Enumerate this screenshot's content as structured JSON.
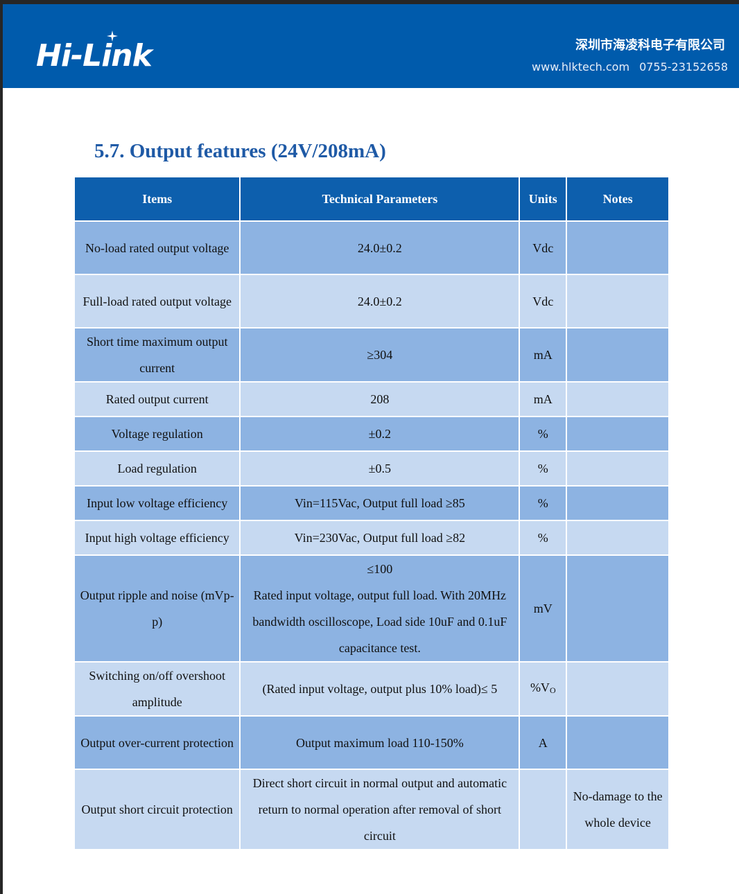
{
  "header": {
    "logo": "Hi-Link",
    "company": "深圳市海凌科电子有限公司",
    "website": "www.hlktech.com",
    "phone": "0755-23152658"
  },
  "title": "5.7. Output features (24V/208mA)",
  "table": {
    "columns": [
      "Items",
      "Technical Parameters",
      "Units",
      "Notes"
    ],
    "rows": [
      {
        "item": "No-load rated output voltage",
        "param": "24.0±0.2",
        "unit": "Vdc",
        "note": ""
      },
      {
        "item": "Full-load rated output voltage",
        "param": "24.0±0.2",
        "unit": "Vdc",
        "note": ""
      },
      {
        "item": "Short time maximum output current",
        "param": "≥304",
        "unit": "mA",
        "note": ""
      },
      {
        "item": "Rated output current",
        "param": "208",
        "unit": "mA",
        "note": ""
      },
      {
        "item": "Voltage regulation",
        "param": "±0.2",
        "unit": "%",
        "note": ""
      },
      {
        "item": "Load regulation",
        "param": "±0.5",
        "unit": "%",
        "note": ""
      },
      {
        "item": "Input low voltage efficiency",
        "param": "Vin=115Vac, Output full load ≥85",
        "unit": "%",
        "note": ""
      },
      {
        "item": "Input high voltage efficiency",
        "param": "Vin=230Vac, Output full load ≥82",
        "unit": "%",
        "note": ""
      },
      {
        "item": "Output ripple and noise (mVp-p)",
        "param": "≤100",
        "param2": "Rated input voltage, output full load. With 20MHz bandwidth oscilloscope, Load side 10uF and 0.1uF capacitance test.",
        "unit": "mV",
        "note": ""
      },
      {
        "item": "Switching on/off overshoot amplitude",
        "param": "(Rated input voltage, output plus 10% load)≤ 5",
        "unit": "%V",
        "unit_sub": "O",
        "note": ""
      },
      {
        "item": "Output over-current protection",
        "param": "Output maximum load 110-150%",
        "unit": "A",
        "note": ""
      },
      {
        "item": "Output short circuit protection",
        "param": "Direct short circuit in normal output and automatic return to normal operation after removal of short circuit",
        "unit": "",
        "note": "No-damage to the whole device"
      }
    ]
  }
}
